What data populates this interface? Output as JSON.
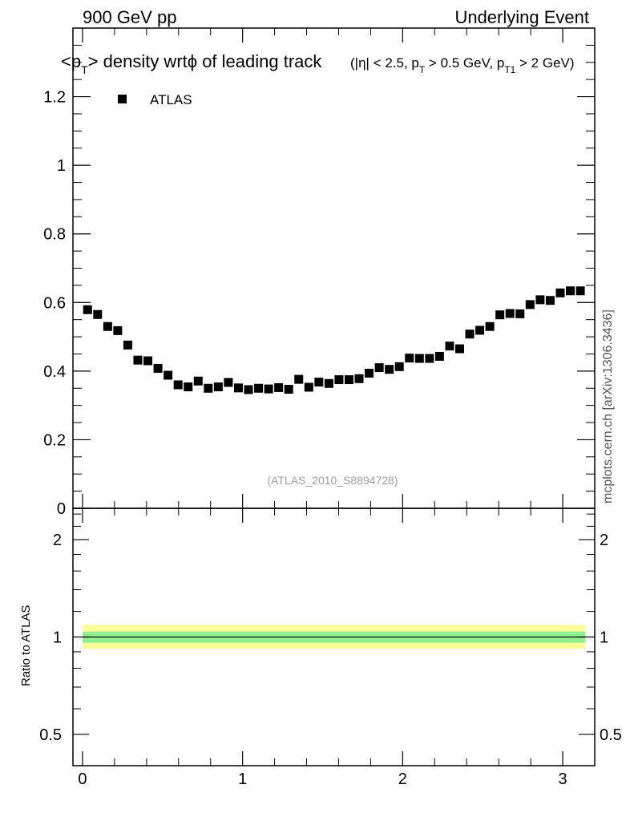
{
  "header": {
    "left": "900 GeV pp",
    "right": "Underlying Event",
    "side_label": "mcplots.cern.ch [arXiv:1306.3436]",
    "analysis_id": "(ATLAS_2010_S8894728)"
  },
  "title": {
    "main_prefix": "<p",
    "main_sub": "T",
    "main_suffix": "> density wrtϕ of leading track",
    "cuts_a": "(|η| < 2.5, p",
    "cuts_sub1": "T",
    "cuts_b": " > 0.5 GeV, p",
    "cuts_sub2": "T1",
    "cuts_c": " > 2 GeV)"
  },
  "legend": {
    "label": "ATLAS",
    "marker_color": "#000000"
  },
  "ratio_panel": {
    "ylabel": "Ratio to ATLAS"
  },
  "colors": {
    "band_inner": "#90f090",
    "band_outer": "#ffff99",
    "marker": "#000000"
  },
  "chart_data": [
    {
      "type": "scatter",
      "panel": "main",
      "title": "<pT> density wrt phi of leading track",
      "xlabel": "",
      "ylabel": "",
      "xlim": [
        -0.06,
        3.2
      ],
      "ylim": [
        0,
        1.4
      ],
      "yticks": [
        0,
        0.2,
        0.4,
        0.6,
        0.8,
        1,
        1.2
      ],
      "ytick_labels": [
        "0",
        "0.2",
        "0.4",
        "0.6",
        "0.8",
        "1",
        "1.2"
      ],
      "series": [
        {
          "name": "ATLAS",
          "marker": "square",
          "x": [
            0.0314,
            0.0942,
            0.1571,
            0.2199,
            0.2827,
            0.3456,
            0.4084,
            0.4712,
            0.5341,
            0.5969,
            0.6597,
            0.7226,
            0.7854,
            0.8482,
            0.9111,
            0.9739,
            1.0367,
            1.0996,
            1.1624,
            1.2252,
            1.2881,
            1.3509,
            1.4137,
            1.4765,
            1.5394,
            1.6022,
            1.665,
            1.7279,
            1.7907,
            1.8535,
            1.9164,
            1.9792,
            2.042,
            2.1049,
            2.1677,
            2.2305,
            2.2934,
            2.3562,
            2.419,
            2.4819,
            2.5447,
            2.6075,
            2.6704,
            2.7332,
            2.796,
            2.8588,
            2.9217,
            2.9845,
            3.0473,
            3.1102
          ],
          "y": [
            0.579,
            0.565,
            0.53,
            0.518,
            0.476,
            0.432,
            0.43,
            0.408,
            0.388,
            0.36,
            0.354,
            0.371,
            0.35,
            0.354,
            0.367,
            0.351,
            0.346,
            0.35,
            0.348,
            0.352,
            0.347,
            0.376,
            0.353,
            0.368,
            0.364,
            0.375,
            0.375,
            0.378,
            0.394,
            0.41,
            0.405,
            0.413,
            0.438,
            0.437,
            0.437,
            0.443,
            0.473,
            0.465,
            0.508,
            0.519,
            0.53,
            0.564,
            0.568,
            0.567,
            0.594,
            0.608,
            0.606,
            0.628,
            0.634,
            0.634
          ]
        }
      ]
    },
    {
      "type": "line",
      "panel": "ratio",
      "ylabel": "Ratio to ATLAS",
      "xlim": [
        -0.06,
        3.2
      ],
      "xticks": [
        0,
        1,
        2,
        3
      ],
      "xtick_labels": [
        "0",
        "1",
        "2",
        "3"
      ],
      "ylim": [
        0.4,
        2.5
      ],
      "yscale": "log",
      "yticks": [
        0.5,
        1,
        2
      ],
      "ytick_labels": [
        "0.5",
        "1",
        "2"
      ],
      "reference_line": 1,
      "band_inner": [
        0.96,
        1.04
      ],
      "band_outer": [
        0.92,
        1.09
      ]
    }
  ]
}
